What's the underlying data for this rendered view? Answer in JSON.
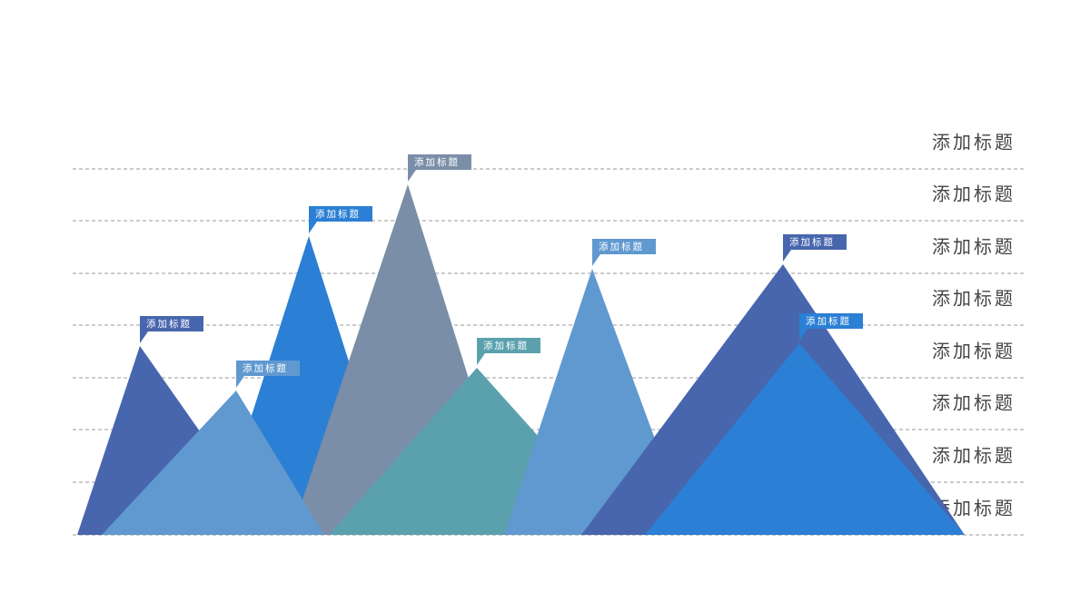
{
  "row_labels": [
    "添加标题",
    "添加标题",
    "添加标题",
    "添加标题",
    "添加标题",
    "添加标题",
    "添加标题",
    "添加标题"
  ],
  "peaks": [
    {
      "label": "添加标题"
    },
    {
      "label": "添加标题"
    },
    {
      "label": "添加标题"
    },
    {
      "label": "添加标题"
    },
    {
      "label": "添加标题"
    },
    {
      "label": "添加标题"
    },
    {
      "label": "添加标题"
    },
    {
      "label": "添加标题"
    }
  ]
}
